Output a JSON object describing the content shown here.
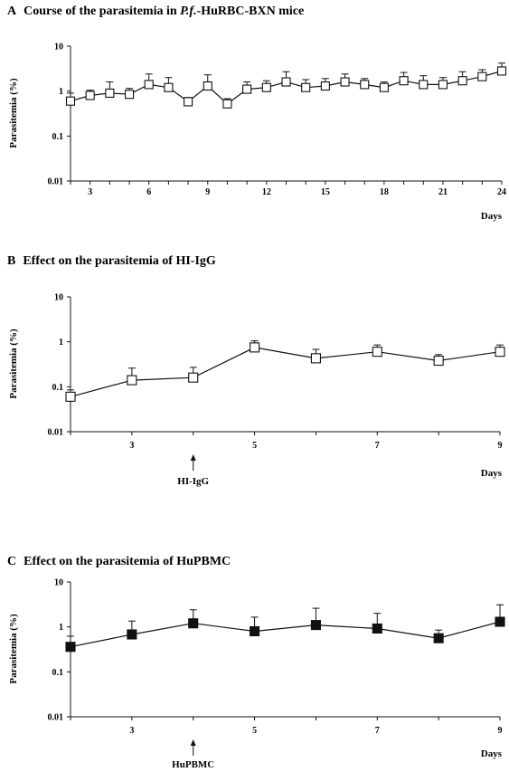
{
  "chart_data": [
    {
      "type": "line",
      "panel_letter": "A",
      "title_pre": "Course of the parasitemia in ",
      "title_em": "P.f.",
      "title_post": "-HuRBC-BXN mice",
      "ylabel": "Parasitemia (%)",
      "xlabel": "Days",
      "y_scale": "log",
      "ylim": [
        0.01,
        10
      ],
      "y_ticks": [
        {
          "v": 0.01,
          "label": "0.01"
        },
        {
          "v": 0.1,
          "label": "0.1"
        },
        {
          "v": 1,
          "label": "1"
        },
        {
          "v": 10,
          "label": "10"
        }
      ],
      "xlim": [
        2,
        24
      ],
      "x_ticks": [
        "3",
        "6",
        "9",
        "12",
        "15",
        "18",
        "21",
        "24"
      ],
      "marker": "open-square",
      "series": [
        {
          "x": [
            2,
            3,
            4,
            5,
            6,
            7,
            8,
            9,
            10,
            11,
            12,
            13,
            14,
            15,
            16,
            17,
            18,
            19,
            20,
            21,
            22,
            23,
            24
          ],
          "y": [
            0.6,
            0.8,
            0.9,
            0.85,
            1.4,
            1.2,
            0.58,
            1.3,
            0.52,
            1.1,
            1.2,
            1.6,
            1.2,
            1.3,
            1.6,
            1.4,
            1.2,
            1.7,
            1.4,
            1.4,
            1.7,
            2.1,
            2.8
          ],
          "err_upper": [
            0.9,
            1.05,
            1.6,
            1.15,
            2.4,
            2.0,
            0.72,
            2.3,
            0.68,
            1.6,
            1.7,
            2.7,
            1.8,
            1.9,
            2.4,
            1.9,
            1.6,
            2.6,
            2.2,
            2.0,
            2.7,
            3.0,
            4.2
          ]
        }
      ]
    },
    {
      "type": "line",
      "panel_letter": "B",
      "title_pre": "Effect on the parasitemia of HI-IgG",
      "title_em": "",
      "title_post": "",
      "ylabel": "Parasitemia (%)",
      "xlabel": "Days",
      "y_scale": "log",
      "ylim": [
        0.01,
        10
      ],
      "y_ticks": [
        {
          "v": 0.01,
          "label": "0.01"
        },
        {
          "v": 0.1,
          "label": "0.1"
        },
        {
          "v": 1,
          "label": "1"
        },
        {
          "v": 10,
          "label": "10"
        }
      ],
      "xlim": [
        2,
        9
      ],
      "x_ticks": [
        "3",
        "5",
        "7",
        "9"
      ],
      "marker": "open-square",
      "annotation": {
        "text": "HI-IgG",
        "x": 4
      },
      "series": [
        {
          "x": [
            2,
            3,
            4,
            5,
            6,
            7,
            8,
            9
          ],
          "y": [
            0.06,
            0.14,
            0.16,
            0.75,
            0.43,
            0.6,
            0.38,
            0.6
          ],
          "err_upper": [
            0.085,
            0.26,
            0.27,
            1.05,
            0.68,
            0.85,
            0.52,
            0.85
          ]
        }
      ]
    },
    {
      "type": "line",
      "panel_letter": "C",
      "title_pre": "Effect on the parasitemia of HuPBMC",
      "title_em": "",
      "title_post": "",
      "ylabel": "Parasitemia (%)",
      "xlabel": "Days",
      "y_scale": "log",
      "ylim": [
        0.01,
        10
      ],
      "y_ticks": [
        {
          "v": 0.01,
          "label": "0.01"
        },
        {
          "v": 0.1,
          "label": "0.1"
        },
        {
          "v": 1,
          "label": "1"
        },
        {
          "v": 10,
          "label": "10"
        }
      ],
      "xlim": [
        2,
        9
      ],
      "x_ticks": [
        "3",
        "5",
        "7",
        "9"
      ],
      "marker": "filled-square",
      "annotation": {
        "text": "HuPBMC",
        "x": 4
      },
      "series": [
        {
          "x": [
            2,
            3,
            4,
            5,
            6,
            7,
            8,
            9
          ],
          "y": [
            0.36,
            0.68,
            1.2,
            0.8,
            1.1,
            0.92,
            0.56,
            1.3
          ],
          "err_upper": [
            0.62,
            1.35,
            2.4,
            1.65,
            2.6,
            2.0,
            0.85,
            3.1
          ]
        }
      ]
    }
  ]
}
